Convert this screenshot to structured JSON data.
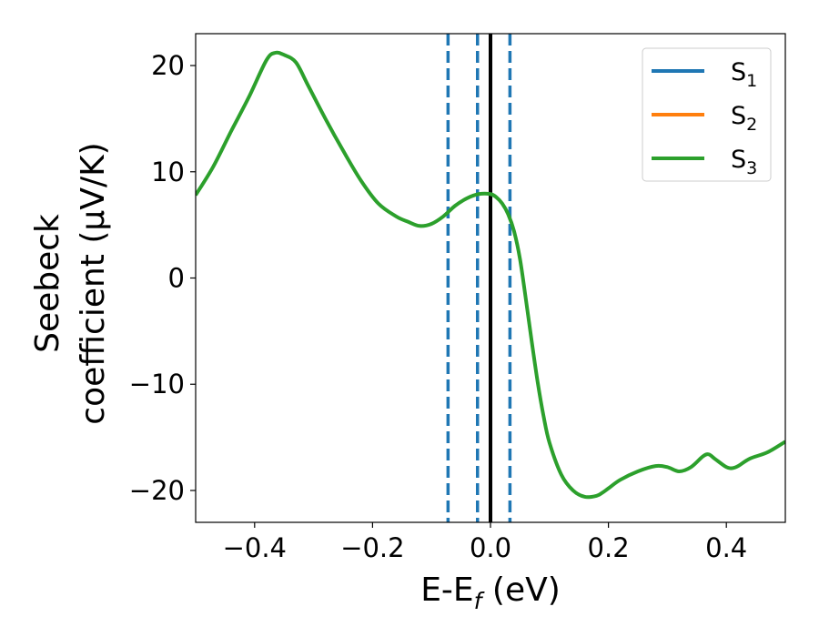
{
  "chart_data": {
    "type": "line",
    "xlabel": {
      "main": "E-E",
      "sub": "f",
      "unit": " (eV)"
    },
    "ylabel": {
      "line1": "Seebeck",
      "line2": "coefficient  (μV/K)"
    },
    "xlim": [
      -0.5,
      0.5
    ],
    "ylim": [
      -23,
      23
    ],
    "x_ticks": [
      -0.4,
      -0.2,
      0.0,
      0.2,
      0.4
    ],
    "x_tick_labels": [
      "−0.4",
      "−0.2",
      "0.0",
      "0.2",
      "0.4"
    ],
    "y_ticks": [
      20,
      10,
      0,
      -10,
      -20
    ],
    "y_tick_labels": [
      "20",
      "10",
      "0",
      "−10",
      "−20"
    ],
    "grid": false,
    "legend_position": "top-right",
    "series": [
      {
        "name": "S",
        "sub": "1",
        "color": "#1f77b4",
        "x": [],
        "y": []
      },
      {
        "name": "S",
        "sub": "2",
        "color": "#ff7f0e",
        "x": [],
        "y": []
      },
      {
        "name": "S",
        "sub": "3",
        "color": "#2ca02c",
        "x": [
          -0.5,
          -0.47,
          -0.44,
          -0.41,
          -0.38,
          -0.365,
          -0.35,
          -0.33,
          -0.31,
          -0.28,
          -0.25,
          -0.22,
          -0.19,
          -0.16,
          -0.14,
          -0.12,
          -0.1,
          -0.08,
          -0.06,
          -0.04,
          -0.02,
          0.0,
          0.01,
          0.02,
          0.03,
          0.04,
          0.05,
          0.06,
          0.07,
          0.08,
          0.09,
          0.1,
          0.12,
          0.14,
          0.16,
          0.18,
          0.19,
          0.2,
          0.22,
          0.25,
          0.28,
          0.3,
          0.32,
          0.34,
          0.36,
          0.37,
          0.38,
          0.4,
          0.41,
          0.42,
          0.44,
          0.47,
          0.5
        ],
        "y": [
          7.8,
          10.5,
          13.8,
          17.0,
          20.5,
          21.2,
          21.0,
          20.3,
          18.2,
          15.0,
          12.0,
          9.2,
          7.0,
          5.8,
          5.3,
          4.9,
          5.1,
          5.8,
          6.8,
          7.5,
          7.9,
          7.9,
          7.6,
          7.0,
          6.0,
          4.4,
          1.8,
          -2.0,
          -6.0,
          -9.8,
          -13.0,
          -15.5,
          -18.5,
          -20.0,
          -20.6,
          -20.5,
          -20.2,
          -19.8,
          -19.0,
          -18.2,
          -17.7,
          -17.8,
          -18.2,
          -17.8,
          -16.8,
          -16.6,
          -17.0,
          -17.8,
          -17.9,
          -17.7,
          -17.0,
          -16.4,
          -15.4
        ]
      }
    ],
    "vertical_lines": [
      {
        "x": -0.072,
        "color": "#1f77b4",
        "style": "dashed"
      },
      {
        "x": -0.022,
        "color": "#1f77b4",
        "style": "dashed"
      },
      {
        "x": 0.0,
        "color": "#000000",
        "style": "solid"
      },
      {
        "x": 0.033,
        "color": "#1f77b4",
        "style": "dashed"
      }
    ]
  }
}
